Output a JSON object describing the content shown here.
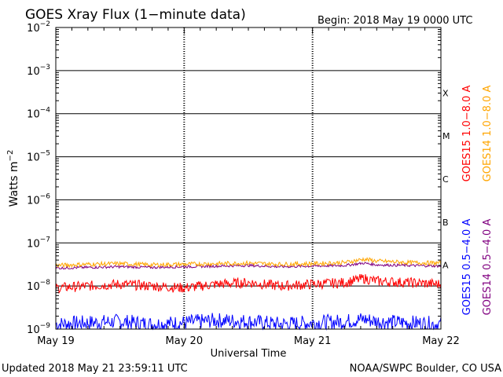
{
  "chart_data": {
    "type": "line",
    "title": "GOES Xray Flux (1−minute data)",
    "begin_text": "Begin:  2018 May 19 0000 UTC",
    "xlabel": "Universal Time",
    "ylabel": "Watts m",
    "ylabel_sup": "−2",
    "y_scale": "log",
    "ylim": [
      1e-09,
      0.01
    ],
    "x_range_days": [
      0,
      3
    ],
    "x_ticks": [
      {
        "label": "May 19",
        "day": 0
      },
      {
        "label": "May 20",
        "day": 1
      },
      {
        "label": "May 21",
        "day": 2
      },
      {
        "label": "May 22",
        "day": 3
      }
    ],
    "y_ticks": [
      {
        "base": "10",
        "exp": "−9",
        "value": 1e-09
      },
      {
        "base": "10",
        "exp": "−8",
        "value": 1e-08
      },
      {
        "base": "10",
        "exp": "−7",
        "value": 1e-07
      },
      {
        "base": "10",
        "exp": "−6",
        "value": 1e-06
      },
      {
        "base": "10",
        "exp": "−5",
        "value": 1e-05
      },
      {
        "base": "10",
        "exp": "−4",
        "value": 0.0001
      },
      {
        "base": "10",
        "exp": "−3",
        "value": 0.001
      },
      {
        "base": "10",
        "exp": "−2",
        "value": 0.01
      }
    ],
    "flare_classes": [
      {
        "label": "A",
        "value": 1e-08
      },
      {
        "label": "B",
        "value": 1e-07
      },
      {
        "label": "C",
        "value": 1e-06
      },
      {
        "label": "M",
        "value": 1e-05
      },
      {
        "label": "X",
        "value": 0.0001
      }
    ],
    "grid": true,
    "series": [
      {
        "name": "GOES15 1.0−8.0 A",
        "color": "#ff0000",
        "x": [
          0,
          0.25,
          0.5,
          0.75,
          1.0,
          1.25,
          1.5,
          1.75,
          2.0,
          2.25,
          2.4,
          2.5,
          2.75,
          3.0
        ],
        "y": [
          9e-09,
          1e-08,
          1.1e-08,
          1e-08,
          9e-09,
          1.1e-08,
          1.2e-08,
          1e-08,
          1.1e-08,
          1.2e-08,
          1.5e-08,
          1.3e-08,
          1.2e-08,
          1.1e-08
        ]
      },
      {
        "name": "GOES14 1.0−8.0 A",
        "color": "#ffa500",
        "x": [
          0,
          0.25,
          0.5,
          0.75,
          1.0,
          1.25,
          1.5,
          1.75,
          2.0,
          2.25,
          2.4,
          2.5,
          2.75,
          3.0
        ],
        "y": [
          3e-08,
          3.2e-08,
          3.3e-08,
          3.1e-08,
          3.2e-08,
          3.3e-08,
          3.4e-08,
          3.2e-08,
          3.3e-08,
          3.5e-08,
          4.2e-08,
          3.8e-08,
          3.5e-08,
          3.4e-08
        ]
      },
      {
        "name": "GOES15 0.5−4.0 A",
        "color": "#0000ff",
        "x": [
          0,
          0.25,
          0.5,
          0.75,
          1.0,
          1.25,
          1.5,
          1.75,
          2.0,
          2.25,
          2.4,
          2.5,
          2.75,
          3.0
        ],
        "y": [
          1.3e-09,
          1.4e-09,
          1.5e-09,
          1.3e-09,
          1.4e-09,
          1.6e-09,
          1.5e-09,
          1.3e-09,
          1.4e-09,
          1.5e-09,
          1.7e-09,
          1.5e-09,
          1.4e-09,
          1.3e-09
        ]
      },
      {
        "name": "GOES14 0.5−4.0 A",
        "color": "#800080",
        "x": [
          0,
          0.25,
          0.5,
          0.75,
          1.0,
          1.25,
          1.5,
          1.75,
          2.0,
          2.25,
          2.4,
          2.5,
          2.75,
          3.0
        ],
        "y": [
          2.6e-08,
          2.7e-08,
          2.8e-08,
          2.7e-08,
          2.8e-08,
          2.9e-08,
          3e-08,
          2.8e-08,
          2.9e-08,
          3e-08,
          3.4e-08,
          3.1e-08,
          3e-08,
          2.9e-08
        ]
      }
    ]
  },
  "footer": {
    "updated": "Updated 2018 May 21 23:59:11 UTC",
    "credit": "NOAA/SWPC Boulder, CO USA"
  }
}
